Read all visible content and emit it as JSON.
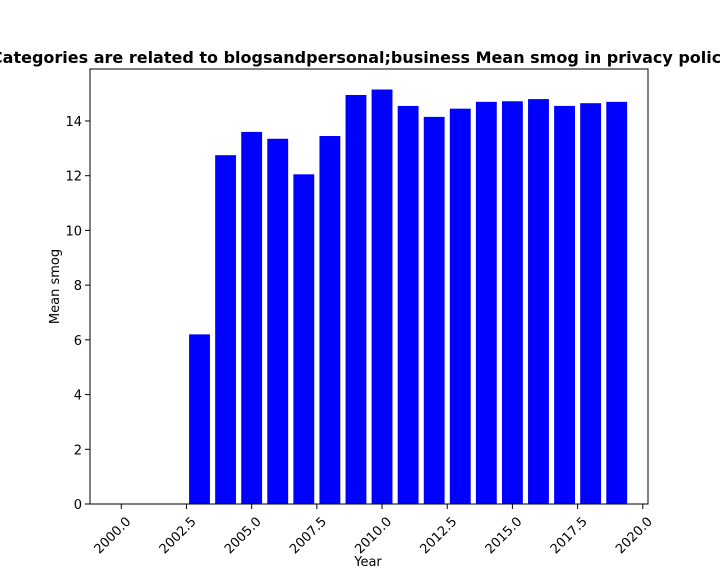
{
  "chart_data": {
    "type": "bar",
    "title": "Categories are related to blogsandpersonal;business Mean smog in privacy policies",
    "xlabel": "Year",
    "ylabel": "Mean smog",
    "x": [
      2003,
      2004,
      2005,
      2006,
      2007,
      2008,
      2009,
      2010,
      2011,
      2012,
      2013,
      2014,
      2015,
      2016,
      2017,
      2018,
      2019
    ],
    "values": [
      6.2,
      12.75,
      13.6,
      13.35,
      12.05,
      13.45,
      14.95,
      15.15,
      14.55,
      14.15,
      14.45,
      14.7,
      14.72,
      14.8,
      14.55,
      14.65,
      14.7
    ],
    "xlim": [
      1998.8,
      2020.2
    ],
    "ylim": [
      0,
      15.9
    ],
    "xticks": [
      2000.0,
      2002.5,
      2005.0,
      2007.5,
      2010.0,
      2012.5,
      2015.0,
      2017.5,
      2020.0
    ],
    "xtick_labels": [
      "2000.0",
      "2002.5",
      "2005.0",
      "2007.5",
      "2010.0",
      "2012.5",
      "2015.0",
      "2017.5",
      "2020.0"
    ],
    "yticks": [
      0,
      2,
      4,
      6,
      8,
      10,
      12,
      14
    ],
    "ytick_labels": [
      "0",
      "2",
      "4",
      "6",
      "8",
      "10",
      "12",
      "14"
    ],
    "bar_color": "#0000ff",
    "grid": false,
    "legend": "none"
  }
}
